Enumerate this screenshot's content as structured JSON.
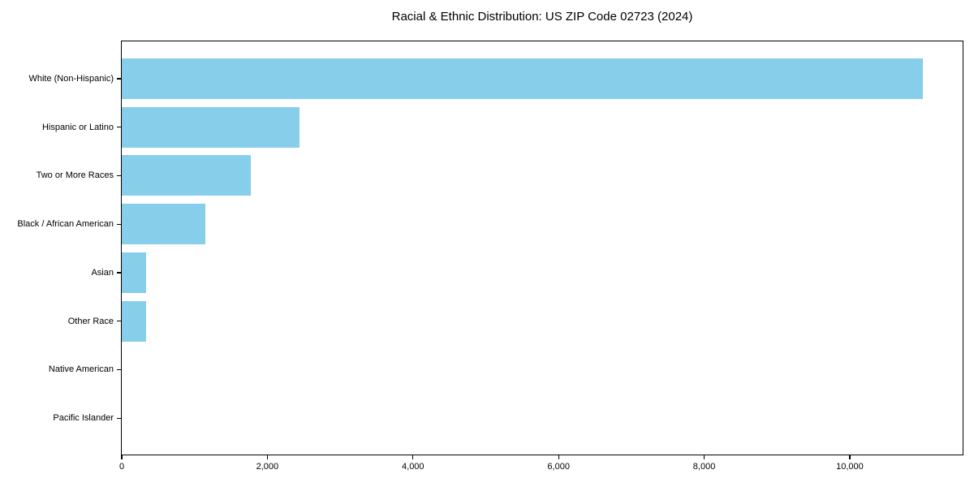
{
  "page": {
    "background_color": "#ffffff",
    "text_color": "#000000"
  },
  "chart_data": {
    "type": "bar",
    "orientation": "horizontal",
    "title": "Racial & Ethnic Distribution: US ZIP Code 02723 (2024)",
    "categories": [
      "White (Non-Hispanic)",
      "Hispanic or Latino",
      "Two or More Races",
      "Black / African American",
      "Asian",
      "Other Race",
      "Native American",
      "Pacific Islander"
    ],
    "values": [
      11000,
      2440,
      1775,
      1145,
      340,
      335,
      0,
      0
    ],
    "xlabel": "",
    "ylabel": "",
    "xlim": [
      0,
      11550
    ],
    "xticks": [
      0,
      2000,
      4000,
      6000,
      8000,
      10000
    ],
    "xtick_labels": [
      "0",
      "2,000",
      "4,000",
      "6,000",
      "8,000",
      "10,000"
    ],
    "bar_color": "#87CEEB",
    "axis_color": "#000000",
    "grid": false,
    "legend": null
  }
}
